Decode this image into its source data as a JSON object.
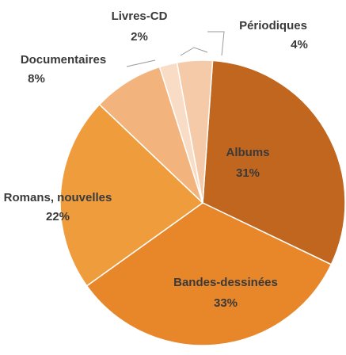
{
  "chart_data": {
    "type": "pie",
    "categories": [
      "Albums",
      "Bandes-dessinées",
      "Romans, nouvelles",
      "Documentaires",
      "Livres-CD",
      "Périodiques"
    ],
    "values": [
      31,
      33,
      22,
      8,
      2,
      4
    ],
    "value_labels": [
      "31%",
      "33%",
      "22%",
      "8%",
      "2%",
      "4%"
    ],
    "colors": [
      "#c0661f",
      "#e8862a",
      "#ef9c3c",
      "#f2b47c",
      "#f9dcc6",
      "#f5caa8"
    ]
  }
}
